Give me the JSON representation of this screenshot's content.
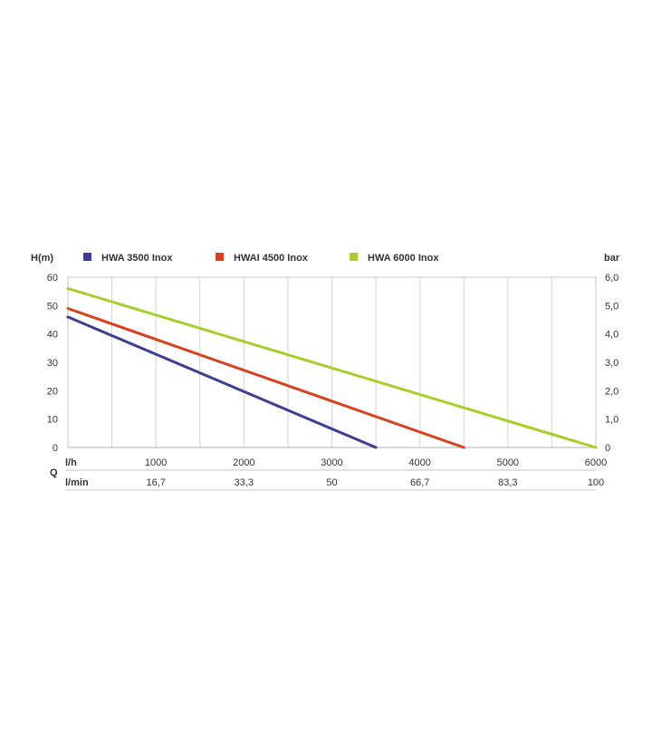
{
  "chart_data": {
    "type": "line",
    "title": "",
    "ylabel_left": "H(m)",
    "ylabel_right": "bar",
    "xlabel": "Q",
    "x_unit_primary": "l/h",
    "x_unit_secondary": "l/min",
    "xlim": [
      0,
      6000
    ],
    "ylim": [
      0,
      60
    ],
    "x_ticks": [
      1000,
      2000,
      3000,
      4000,
      5000,
      6000
    ],
    "x_tick_labels": [
      "1000",
      "2000",
      "3000",
      "4000",
      "5000",
      "6000"
    ],
    "x_secondary_tick_labels": [
      "16,7",
      "33,3",
      "50",
      "66,7",
      "83,3",
      "100"
    ],
    "y_ticks": [
      0,
      10,
      20,
      30,
      40,
      50,
      60
    ],
    "y_tick_labels": [
      "0",
      "10",
      "20",
      "30",
      "40",
      "50",
      "60"
    ],
    "y_right_tick_labels": [
      "0",
      "1,0",
      "2,0",
      "3,0",
      "4,0",
      "5,0",
      "6,0"
    ],
    "grid": "vertical",
    "legend_position": "top",
    "series": [
      {
        "name": "HWA 3500 Inox",
        "color": "#3b3f95",
        "points": [
          [
            0,
            46
          ],
          [
            3500,
            0
          ]
        ]
      },
      {
        "name": "HWAI 4500 Inox",
        "color": "#d9411e",
        "points": [
          [
            0,
            49
          ],
          [
            4500,
            0
          ]
        ]
      },
      {
        "name": "HWA 6000 Inox",
        "color": "#a6cf2c",
        "points": [
          [
            0,
            56
          ],
          [
            6000,
            0
          ]
        ]
      }
    ]
  }
}
